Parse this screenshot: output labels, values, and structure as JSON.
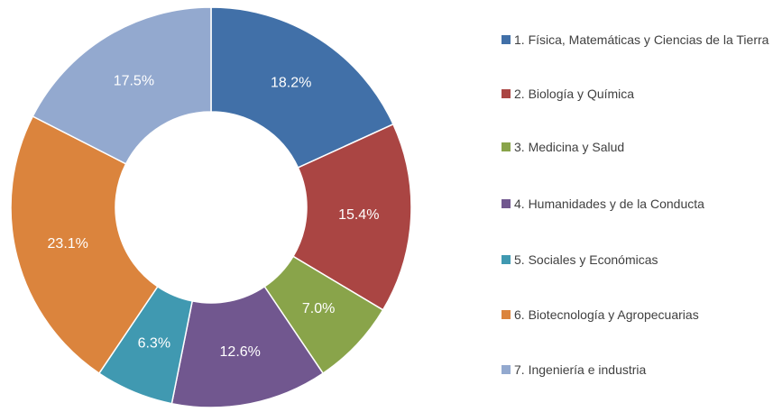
{
  "chart_data": {
    "type": "donut",
    "categories": [
      "1. Física, Matemáticas y Ciencias de la Tierra",
      "2. Biología y Química",
      "3. Medicina y Salud",
      "4. Humanidades y de la Conducta",
      "5. Sociales y Económicas",
      "6. Biotecnología y Agropecuarias",
      "7. Ingeniería e industria"
    ],
    "values": [
      18.2,
      15.4,
      7,
      12.6,
      6.3,
      23.1,
      17.5
    ],
    "value_labels": [
      "18.2%",
      "15.4%",
      "7.0%",
      "12.6%",
      "6.3%",
      "23.1%",
      "17.5%"
    ],
    "colors": [
      "#4170a8",
      "#aa4543",
      "#89a44a",
      "#71578f",
      "#4099b1",
      "#db843d",
      "#93a9cf"
    ],
    "legend": "right"
  }
}
